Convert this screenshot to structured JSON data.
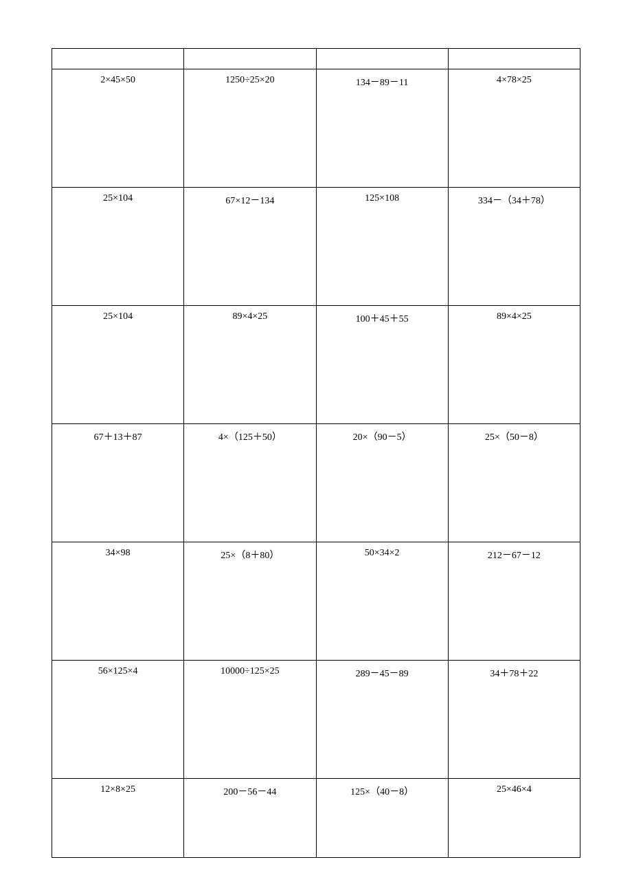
{
  "table": {
    "type": "table",
    "columns": 4,
    "border_color": "#000000",
    "background_color": "#ffffff",
    "text_color": "#000000",
    "font_size": 14,
    "font_family": "SimSun",
    "header_row_height": 30,
    "content_row_height": 172,
    "last_row_height": 115,
    "rows": [
      [
        "",
        "",
        "",
        ""
      ],
      [
        "2×45×50",
        "1250÷25×20",
        "134－89－11",
        "4×78×25"
      ],
      [
        "25×104",
        "67×12－134",
        "125×108",
        "334－（34＋78）"
      ],
      [
        "25×104",
        "89×4×25",
        "100＋45＋55",
        "89×4×25"
      ],
      [
        "67＋13＋87",
        "4×（125＋50）",
        "20×（90－5）",
        "25×（50－8）"
      ],
      [
        "34×98",
        "25×（8＋80）",
        "50×34×2",
        "212－67－12"
      ],
      [
        "56×125×4",
        "10000÷125×25",
        "289－45－89",
        "34＋78＋22"
      ],
      [
        "12×8×25",
        "200－56－44",
        "125×（40－8）",
        "25×46×4"
      ]
    ]
  }
}
